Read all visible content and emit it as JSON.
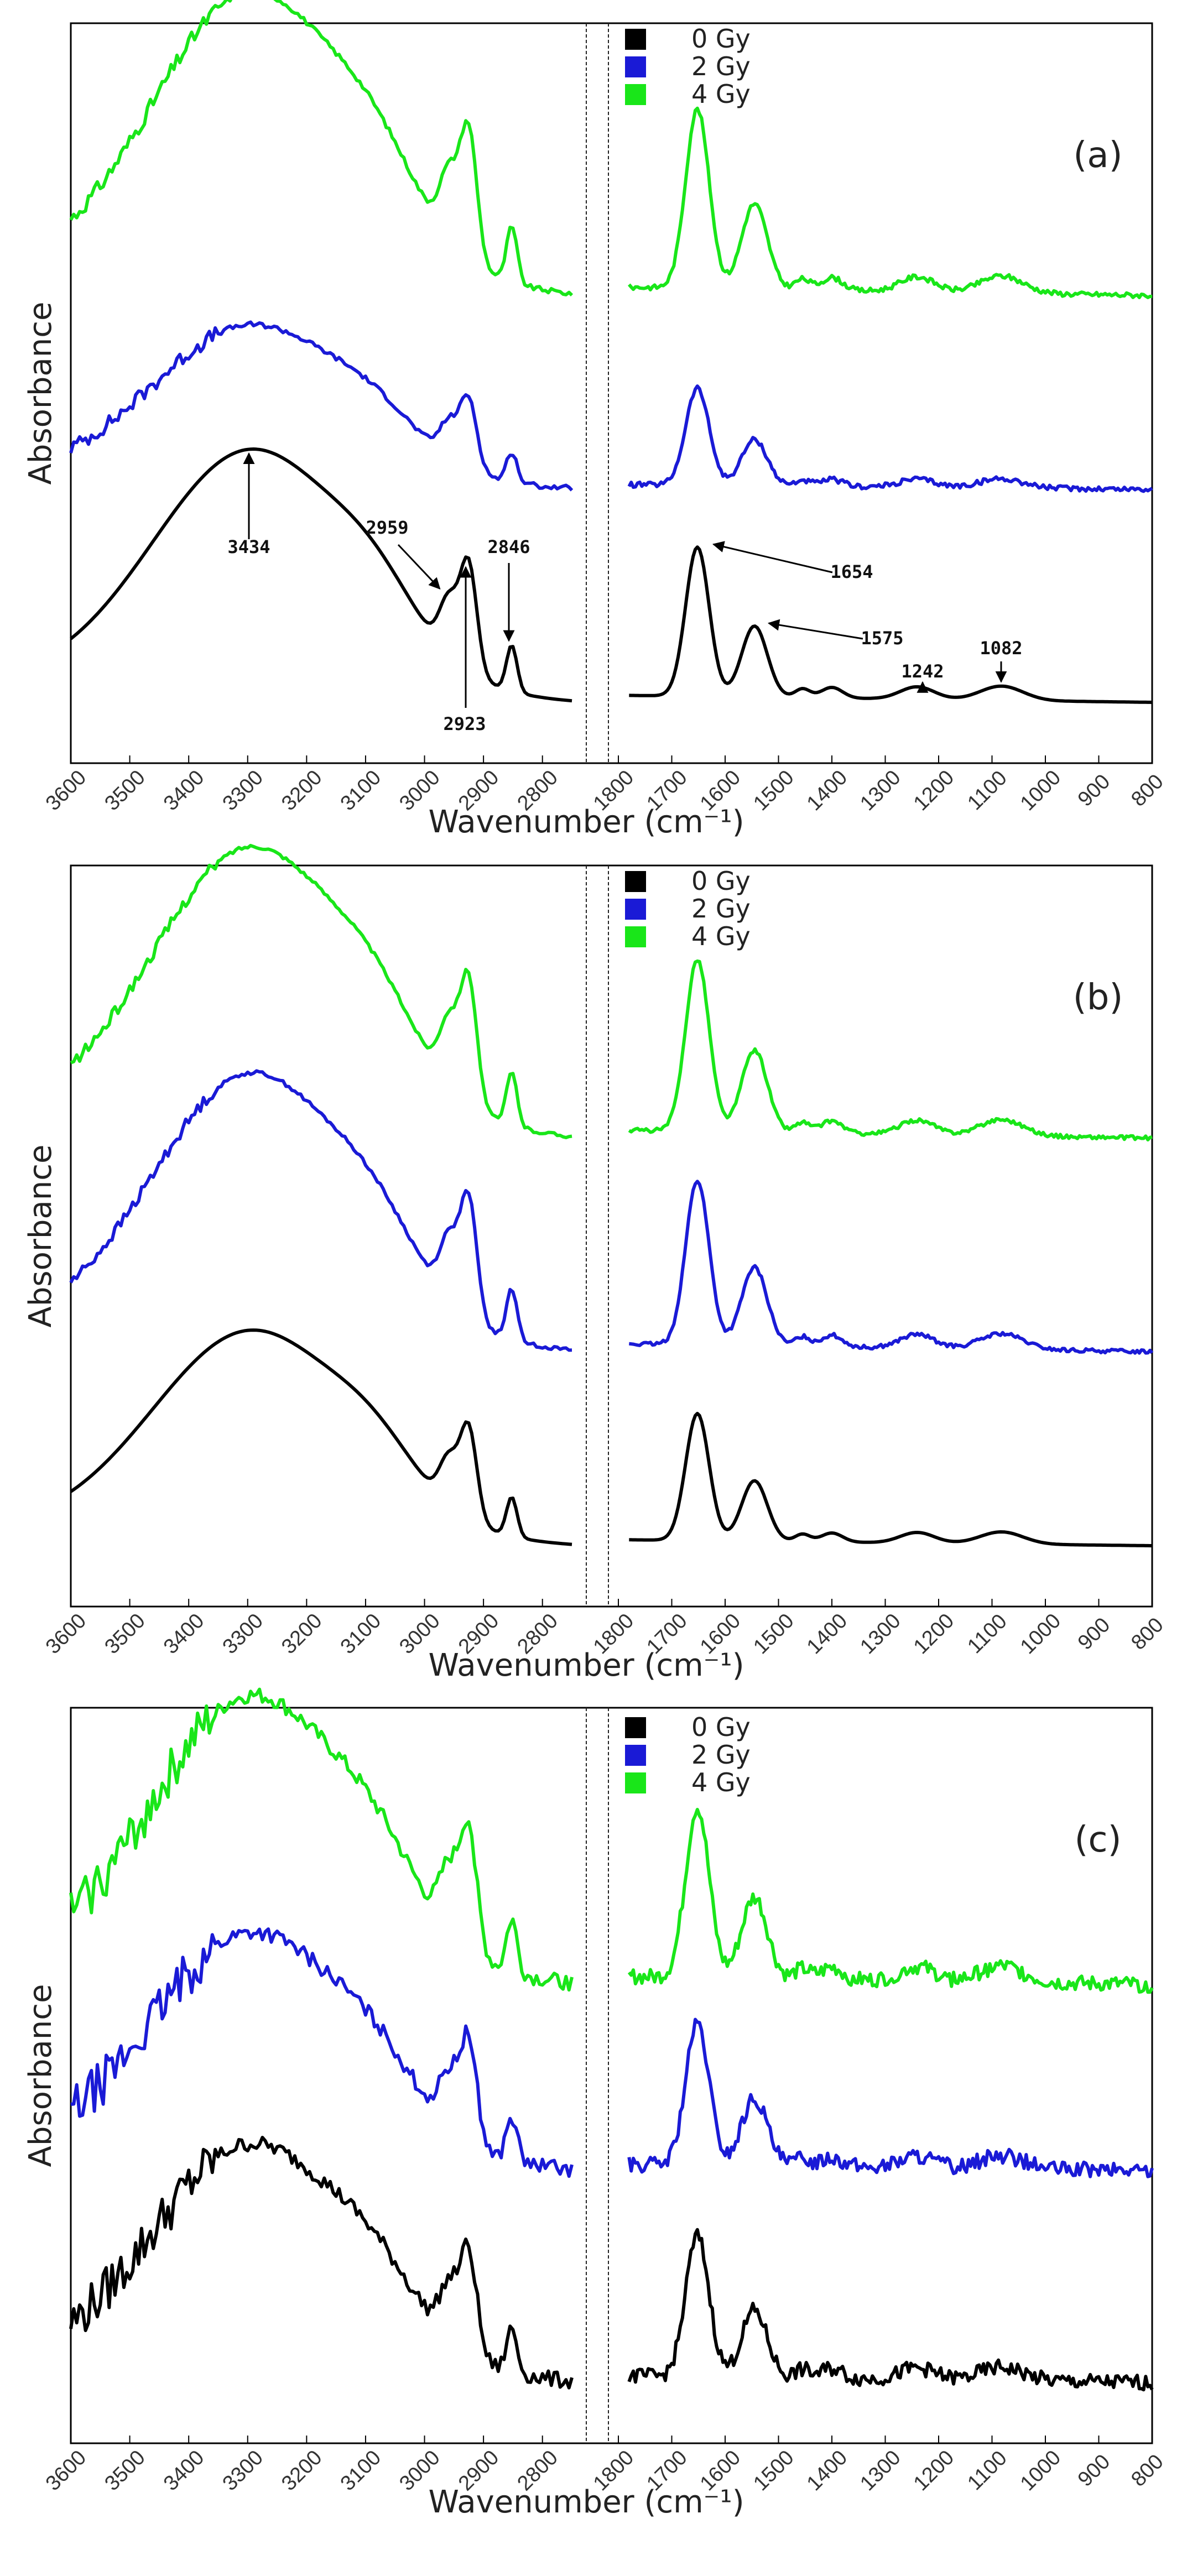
{
  "colors": {
    "0 Gy": "#000000",
    "2 Gy": "#1a1ad6",
    "4 Gy": "#19e619"
  },
  "chart_data": [
    {
      "type": "line",
      "panel": "(a)",
      "xlabel": "Wavenumber (cm⁻¹)",
      "ylabel": "Absorbance",
      "legend": [
        "0 Gy",
        "2 Gy",
        "4 Gy"
      ],
      "left_ticks": [
        "3600",
        "3500",
        "3400",
        "3300",
        "3200",
        "3100",
        "3000",
        "2900",
        "2800"
      ],
      "right_ticks": [
        "1800",
        "1700",
        "1600",
        "1500",
        "1400",
        "1300",
        "1200",
        "1100",
        "1000",
        "900",
        "800"
      ],
      "annotations": [
        "3434",
        "2959",
        "2923",
        "2846",
        "1654",
        "1575",
        "1242",
        "1082"
      ],
      "series": [
        {
          "name": "0 Gy",
          "offset": 0.0,
          "scale": 1.0,
          "noise": 0
        },
        {
          "name": "2 Gy",
          "offset": 0.33,
          "scale": 0.65,
          "noise": 0.004
        },
        {
          "name": "4 Gy",
          "offset": 0.63,
          "scale": 1.2,
          "noise": 0.004
        }
      ]
    },
    {
      "type": "line",
      "panel": "(b)",
      "xlabel": "Wavenumber (cm⁻¹)",
      "ylabel": "Absorbance",
      "legend": [
        "0 Gy",
        "2 Gy",
        "4 Gy"
      ],
      "left_ticks": [
        "3600",
        "3500",
        "3400",
        "3300",
        "3200",
        "3100",
        "3000",
        "2900",
        "2800"
      ],
      "right_ticks": [
        "1800",
        "1700",
        "1600",
        "1500",
        "1400",
        "1300",
        "1200",
        "1100",
        "1000",
        "900",
        "800"
      ],
      "annotations": [],
      "series": [
        {
          "name": "0 Gy",
          "offset": 0.0,
          "scale": 0.85,
          "noise": 0
        },
        {
          "name": "2 Gy",
          "offset": 0.3,
          "scale": 1.1,
          "noise": 0.003
        },
        {
          "name": "4 Gy",
          "offset": 0.63,
          "scale": 1.15,
          "noise": 0.003
        }
      ]
    },
    {
      "type": "line",
      "panel": "(c)",
      "xlabel": "Wavenumber (cm⁻¹)",
      "ylabel": "Absorbance",
      "legend": [
        "0 Gy",
        "2 Gy",
        "4 Gy"
      ],
      "left_ticks": [
        "3600",
        "3500",
        "3400",
        "3300",
        "3200",
        "3100",
        "3000",
        "2900",
        "2800"
      ],
      "right_ticks": [
        "1800",
        "1700",
        "1600",
        "1500",
        "1400",
        "1300",
        "1200",
        "1100",
        "1000",
        "900",
        "800"
      ],
      "annotations": [],
      "series": [
        {
          "name": "0 Gy",
          "offset": 0.0,
          "scale": 0.95,
          "noise": 0.012
        },
        {
          "name": "2 Gy",
          "offset": 0.33,
          "scale": 0.95,
          "noise": 0.012
        },
        {
          "name": "4 Gy",
          "offset": 0.62,
          "scale": 1.15,
          "noise": 0.012
        }
      ]
    }
  ]
}
